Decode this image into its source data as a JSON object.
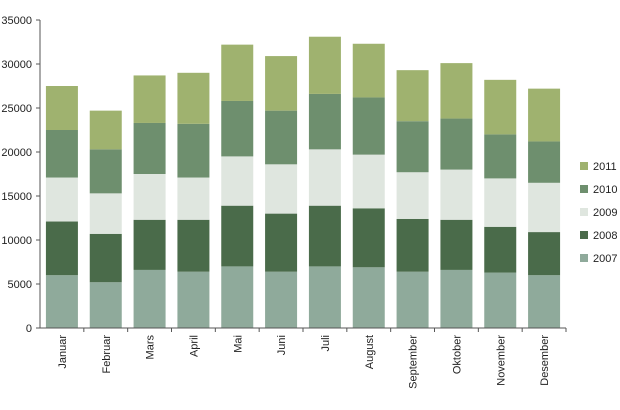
{
  "chart_data": {
    "type": "bar",
    "stacked": true,
    "categories": [
      "Januar",
      "Februar",
      "Mars",
      "April",
      "Mai",
      "Juni",
      "Juli",
      "August",
      "September",
      "Oktober",
      "November",
      "Desember"
    ],
    "series": [
      {
        "name": "2007",
        "color": "#8faa9b",
        "values": [
          6000,
          5200,
          6600,
          6400,
          7000,
          6400,
          7000,
          6900,
          6400,
          6600,
          6300,
          6000
        ]
      },
      {
        "name": "2008",
        "color": "#4a6b4a",
        "values": [
          6100,
          5500,
          5700,
          5900,
          6900,
          6600,
          6900,
          6700,
          6000,
          5700,
          5200,
          4900
        ]
      },
      {
        "name": "2009",
        "color": "#dfe6df",
        "values": [
          5000,
          4600,
          5200,
          4800,
          5600,
          5600,
          6400,
          6100,
          5300,
          5700,
          5500,
          5600
        ]
      },
      {
        "name": "2010",
        "color": "#6e8f6e",
        "values": [
          5400,
          5000,
          5800,
          6100,
          6300,
          6100,
          6300,
          6500,
          5800,
          5800,
          5000,
          4700
        ]
      },
      {
        "name": "2011",
        "color": "#9fb26f",
        "values": [
          5000,
          4400,
          5400,
          5800,
          6400,
          6200,
          6500,
          6100,
          5800,
          6300,
          6200,
          6000
        ]
      }
    ],
    "ylim": [
      0,
      35000
    ],
    "yticks": [
      0,
      5000,
      10000,
      15000,
      20000,
      25000,
      30000,
      35000
    ],
    "legend_order": [
      "2011",
      "2010",
      "2009",
      "2008",
      "2007"
    ],
    "legend_position": "right",
    "grid": false
  }
}
